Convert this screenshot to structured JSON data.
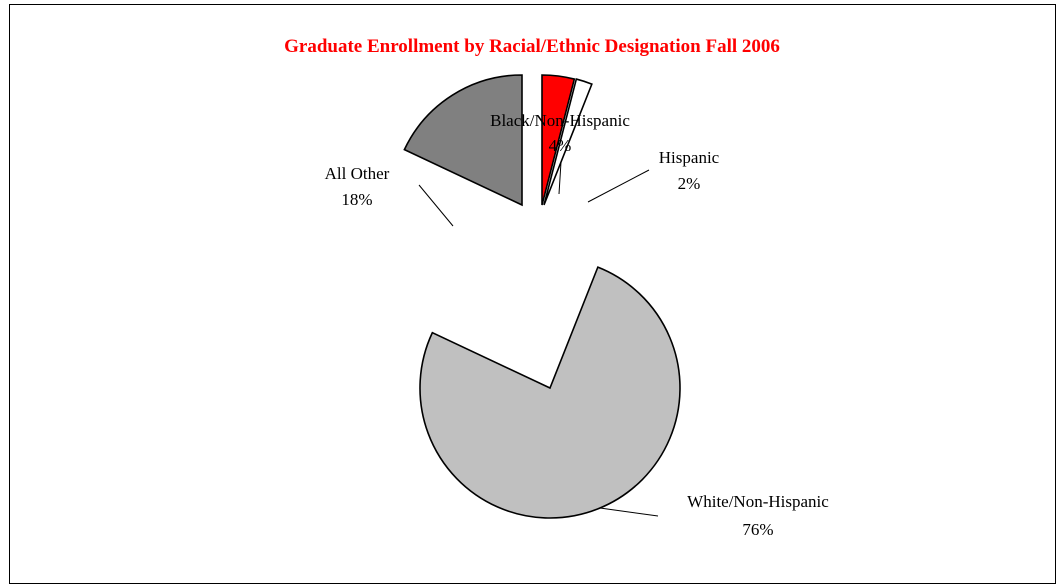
{
  "chart_data": {
    "type": "pie",
    "title": "Graduate Enrollment by Racial/Ethnic Designation Fall 2006",
    "title_color": "#ff0000",
    "exploded": true,
    "slices": [
      {
        "name": "Black/Non-Hispanic",
        "percent_label": "4%",
        "value": 4,
        "color": "#ff0000"
      },
      {
        "name": "Hispanic",
        "percent_label": "2%",
        "value": 2,
        "color": "#ffffff"
      },
      {
        "name": "White/Non-Hispanic",
        "percent_label": "76%",
        "value": 76,
        "color": "#c0c0c0"
      },
      {
        "name": "All Other",
        "percent_label": "18%",
        "value": 18,
        "color": "#808080"
      }
    ]
  }
}
